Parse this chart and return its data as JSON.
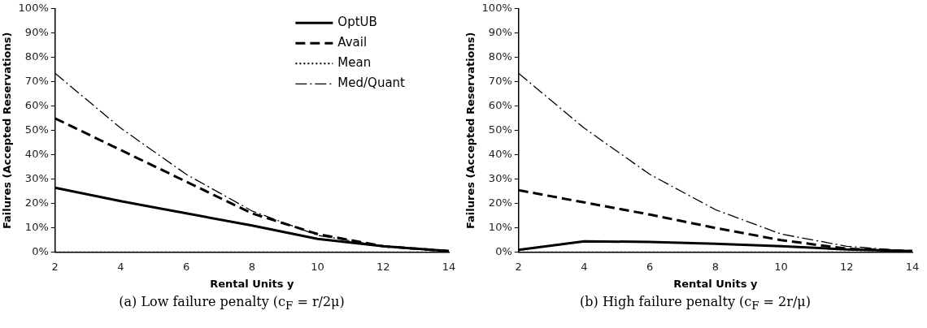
{
  "chart_data": [
    {
      "type": "line",
      "title": "(a) Low failure penalty (c$_{F}$ = r/2μ)",
      "xlabel": "Rental Units y",
      "ylabel": "Failures (Accepted Reservations)",
      "x": [
        2,
        4,
        6,
        8,
        10,
        12,
        14
      ],
      "xlim": [
        2,
        14
      ],
      "xticks": [
        2,
        4,
        6,
        8,
        10,
        12,
        14
      ],
      "ylim": [
        0,
        100
      ],
      "yticks": [
        {
          "value": 0,
          "label": "0%"
        },
        {
          "value": 10,
          "label": "10%"
        },
        {
          "value": 20,
          "label": "20%"
        },
        {
          "value": 30,
          "label": "30%"
        },
        {
          "value": 40,
          "label": "40%"
        },
        {
          "value": 50,
          "label": "50%"
        },
        {
          "value": 60,
          "label": "60%"
        },
        {
          "value": 70,
          "label": "70%"
        },
        {
          "value": 80,
          "label": "80%"
        },
        {
          "value": 90,
          "label": "90%"
        },
        {
          "value": 100,
          "label": "100%"
        }
      ],
      "grid": false,
      "marker": "none",
      "legend": "top right",
      "series": [
        {
          "name": "OptUB",
          "color": "#000000",
          "line_style": "solid",
          "values": [
            26.5,
            21,
            16,
            11,
            5.5,
            2.5,
            0.5
          ]
        },
        {
          "name": "Avail",
          "color": "#000000",
          "line_style": "dashed",
          "values": [
            55,
            42,
            29,
            16,
            7.5,
            2.5,
            0.5
          ]
        },
        {
          "name": "Mean",
          "color": "#000000",
          "line_style": "dotted",
          "values": [
            0,
            0,
            0,
            0,
            0,
            0,
            0
          ]
        },
        {
          "name": "Med/Quant",
          "color": "#000000",
          "line_style": "dashdot",
          "values": [
            73.5,
            51,
            32,
            17,
            7,
            2.5,
            0.5
          ]
        }
      ]
    },
    {
      "type": "line",
      "title": "(b) High failure penalty (c$_{F}$ = 2r/μ)",
      "xlabel": "Rental Units y",
      "ylabel": "Failures (Accepted Reservations)",
      "x": [
        2,
        4,
        6,
        8,
        10,
        12,
        14
      ],
      "xlim": [
        2,
        14
      ],
      "xticks": [
        2,
        4,
        6,
        8,
        10,
        12,
        14
      ],
      "ylim": [
        0,
        100
      ],
      "yticks": [
        {
          "value": 0,
          "label": "0%"
        },
        {
          "value": 10,
          "label": "10%"
        },
        {
          "value": 20,
          "label": "20%"
        },
        {
          "value": 30,
          "label": "30%"
        },
        {
          "value": 40,
          "label": "40%"
        },
        {
          "value": 50,
          "label": "50%"
        },
        {
          "value": 60,
          "label": "60%"
        },
        {
          "value": 70,
          "label": "70%"
        },
        {
          "value": 80,
          "label": "80%"
        },
        {
          "value": 90,
          "label": "90%"
        },
        {
          "value": 100,
          "label": "100%"
        }
      ],
      "grid": false,
      "marker": "none",
      "series": [
        {
          "color": "#000000",
          "line_style": "solid",
          "values": [
            1,
            4.5,
            4.3,
            3.5,
            2.5,
            1.2,
            0.5
          ]
        },
        {
          "color": "#000000",
          "line_style": "dashed",
          "values": [
            25.5,
            20.5,
            15.5,
            10,
            5,
            1.5,
            0.5
          ]
        },
        {
          "color": "#000000",
          "line_style": "dotted",
          "values": [
            0,
            0,
            0,
            0,
            0,
            0,
            0
          ]
        },
        {
          "color": "#000000",
          "line_style": "dashdot",
          "values": [
            73.5,
            51,
            32,
            17.5,
            7.5,
            2.5,
            0.5
          ]
        }
      ]
    }
  ]
}
